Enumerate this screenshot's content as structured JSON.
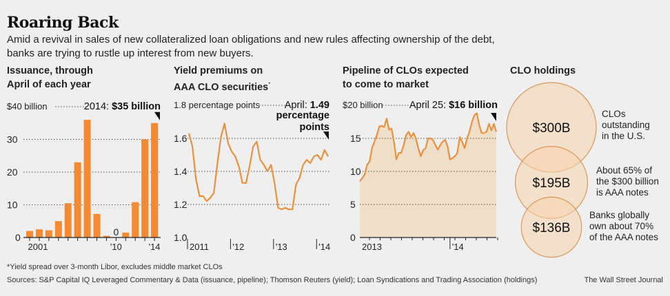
{
  "header": {
    "title": "Roaring Back",
    "subtitle": "Amid a revival in sales of new collateralized loan obligations and new rules affecting ownership of the debt, banks are trying to rustle up interest from new buyers."
  },
  "footer": {
    "footnote": "*Yield spread over 3-month Libor, excludes middle market CLOs",
    "sources": "Sources: S&P Capital IQ Leveraged Commentary & Data (issuance, pipeline); Thomson Reuters (yield); Loan Syndications and Trading Association (holdings)",
    "credit": "The Wall Street Journal"
  },
  "colors": {
    "accent": "#f58a34",
    "line": "#e8913f",
    "area_fill": "#f0dfc8",
    "circle_fill": "#f5d3ad",
    "circle_stroke": "#d9965c",
    "grid": "#555555",
    "background": "#efefef"
  },
  "chart_data": [
    {
      "type": "bar",
      "title_line1": "Issuance, through",
      "title_line2": "April of each year",
      "top_label": "$40 billion",
      "annotation_prefix": "2014: ",
      "annotation_value": "$35 billion",
      "categories": [
        "2001",
        "2002",
        "2003",
        "2004",
        "2005",
        "2006",
        "2007",
        "2008",
        "2009",
        "2010",
        "2011",
        "2012",
        "2013",
        "2014"
      ],
      "values": [
        2,
        2.5,
        2.2,
        5,
        10.5,
        23,
        36,
        7.2,
        0.5,
        0,
        1.5,
        10.8,
        30,
        35
      ],
      "zero_label": "0",
      "ylim": [
        0,
        40
      ],
      "yticks": [
        0,
        10,
        20,
        30
      ],
      "ytick_labels": [
        "0",
        "10",
        "20",
        "30"
      ],
      "xtick_labels": [
        {
          "index": 0,
          "label": "2001"
        },
        {
          "index": 9,
          "label": "'10"
        },
        {
          "index": 13,
          "label": "'14"
        }
      ],
      "grid": true
    },
    {
      "type": "line",
      "title_line1": "Yield premiums on",
      "title_line2": "AAA CLO securities",
      "title_sup": "*",
      "top_label": "1.8 percentage points",
      "annotation_prefix": "April: ",
      "annotation_value": "1.49",
      "annotation_line2": "percentage",
      "annotation_line3": "points",
      "x_start": 2011.0,
      "x_end": 2014.3,
      "values": [
        1.63,
        1.55,
        1.35,
        1.25,
        1.25,
        1.22,
        1.24,
        1.27,
        1.45,
        1.61,
        1.69,
        1.57,
        1.52,
        1.49,
        1.43,
        1.33,
        1.33,
        1.43,
        1.55,
        1.58,
        1.47,
        1.44,
        1.4,
        1.44,
        1.33,
        1.18,
        1.17,
        1.18,
        1.17,
        1.17,
        1.32,
        1.36,
        1.44,
        1.47,
        1.45,
        1.49,
        1.5,
        1.47,
        1.53,
        1.49
      ],
      "ylim": [
        1.0,
        1.8
      ],
      "yticks": [
        1.0,
        1.2,
        1.4,
        1.6
      ],
      "ytick_labels": [
        "1.0",
        "1.2",
        "1.4",
        "1.6"
      ],
      "xticks": [
        {
          "x": 2011,
          "label": "2011"
        },
        {
          "x": 2012,
          "label": "'12"
        },
        {
          "x": 2013,
          "label": "'13"
        },
        {
          "x": 2014,
          "label": "'14"
        }
      ],
      "grid": true
    },
    {
      "type": "area",
      "title_line1": "Pipeline of CLOs expected",
      "title_line2": "to come to market",
      "top_label": "$20 billion",
      "annotation_prefix": "April 25: ",
      "annotation_value": "$16 billion",
      "values": [
        8.5,
        9,
        9.5,
        11,
        11.5,
        13.5,
        14.5,
        15.5,
        16.8,
        16.9,
        16.7,
        18,
        16.3,
        16.5,
        14.5,
        11.8,
        12.8,
        12.8,
        14,
        15.5,
        16,
        15.2,
        15.8,
        15,
        13.5,
        12.3,
        13.2,
        13.5,
        15,
        15,
        14.8,
        14,
        13.3,
        14,
        14.5,
        14.8,
        13.8,
        11.8,
        12,
        12.3,
        12.8,
        15.2,
        14.5,
        13.5,
        15,
        16,
        17.5,
        18.5,
        18.8,
        17,
        15.8,
        15.8,
        16,
        17.2,
        16.2,
        17.2,
        16
      ],
      "ylim": [
        0,
        20
      ],
      "yticks": [
        0,
        5,
        10,
        15
      ],
      "ytick_labels": [
        "0",
        "5",
        "10",
        "15"
      ],
      "xticks": [
        {
          "index": 0,
          "label": "2013"
        },
        {
          "index": 37,
          "label": "'14"
        }
      ],
      "grid": true
    },
    {
      "type": "bubble",
      "title": "CLO holdings",
      "items": [
        {
          "value": 300,
          "label": "$300B",
          "desc": [
            "CLOs",
            "outstanding",
            "in the U.S."
          ]
        },
        {
          "value": 195,
          "label": "$195B",
          "desc": [
            "About 65% of",
            "the $300 billion",
            "is AAA notes"
          ]
        },
        {
          "value": 136,
          "label": "$136B",
          "desc": [
            "Banks globally",
            "own about 70%",
            "of the AAA notes"
          ]
        }
      ]
    }
  ]
}
